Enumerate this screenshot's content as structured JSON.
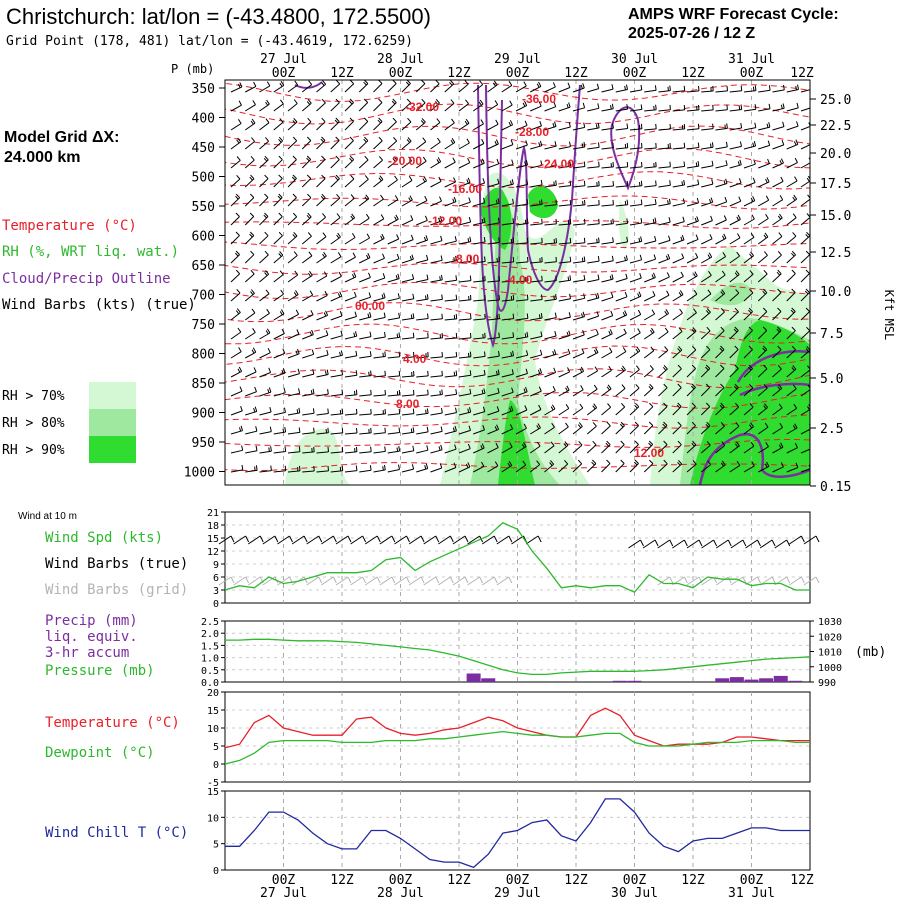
{
  "header": {
    "title": "Christchurch:  lat/lon = (-43.4800, 172.5500)",
    "subtitle": "Grid Point (178, 481) lat/lon = (-43.4619, 172.6259)",
    "cycle_label": "AMPS WRF Forecast Cycle:",
    "cycle_value": "2025-07-26 / 12  Z"
  },
  "left_info": {
    "grid_label": "Model Grid ΔX:",
    "grid_value": " 24.000 km",
    "legend": [
      {
        "text": "Temperature (°C)",
        "color": "#e8202a"
      },
      {
        "text": "RH (%, WRT liq. wat.)",
        "color": "#2eb82e"
      },
      {
        "text": "Cloud/Precip Outline",
        "color": "#7b2ea0"
      },
      {
        "text": "Wind Barbs (kts) (true)",
        "color": "#000000"
      }
    ],
    "rh_legend": [
      {
        "label": "RH > 70%",
        "color": "#d4f7d4"
      },
      {
        "label": "RH > 80%",
        "color": "#9fe89f"
      },
      {
        "label": "RH > 90%",
        "color": "#2fdc2f"
      }
    ]
  },
  "time_axis": {
    "day_labels": [
      "27 Jul",
      "28 Jul",
      "29 Jul",
      "30 Jul",
      "31 Jul"
    ],
    "hour_labels": [
      "00Z",
      "12Z",
      "00Z",
      "12Z",
      "00Z",
      "12Z",
      "00Z",
      "12Z",
      "00Z",
      "12Z"
    ]
  },
  "upper_panel": {
    "p_unit_label": "P (mb)",
    "pressure_ticks": [
      "350",
      "400",
      "450",
      "500",
      "550",
      "600",
      "650",
      "700",
      "750",
      "800",
      "850",
      "900",
      "950",
      "1000"
    ],
    "height_ticks": [
      "25.0",
      "22.5",
      "20.0",
      "17.5",
      "15.0",
      "12.5",
      "10.0",
      "7.5",
      "5.0",
      "2.5",
      "0.15"
    ],
    "height_axis_label": "Kft MSL",
    "temp_labels": [
      "-32.00",
      "-36.00",
      "-28.00",
      "-24.00",
      "-20.00",
      "-16.00",
      "-12.00",
      "-8.00",
      "-4.00",
      "00.00",
      "4.00",
      "8.00",
      "12.00"
    ]
  },
  "wind_panel": {
    "corner_label": "Wind at 10 m",
    "legend": [
      {
        "text": "Wind Spd (kts)",
        "color": "#2eb82e"
      },
      {
        "text": "Wind Barbs (true)",
        "color": "#000000"
      },
      {
        "text": "Wind Barbs (grid)",
        "color": "#b4b4b4"
      }
    ],
    "y_ticks": [
      "21",
      "18",
      "15",
      "12",
      "9",
      "6",
      "3",
      "0"
    ]
  },
  "precip_panel": {
    "legend": [
      {
        "text": "Precip (mm)",
        "color": "#7b2ea0"
      },
      {
        "text": "liq. equiv.",
        "color": "#7b2ea0"
      },
      {
        "text": "3-hr accum",
        "color": "#7b2ea0"
      },
      {
        "text": "Pressure (mb)",
        "color": "#2eb82e"
      }
    ],
    "left_ticks": [
      "2.5",
      "2.0",
      "1.5",
      "1.0",
      "0.5",
      "0.0"
    ],
    "right_ticks": [
      "1030",
      "1020",
      "1010",
      "1000",
      "990"
    ],
    "right_unit": "(mb)"
  },
  "temp_panel": {
    "legend": [
      {
        "text": "Temperature (°C)",
        "color": "#e8202a"
      },
      {
        "text": "Dewpoint (°C)",
        "color": "#2eb82e"
      }
    ],
    "y_ticks": [
      "20",
      "15",
      "10",
      "5",
      "0",
      "-5"
    ]
  },
  "chill_panel": {
    "legend": [
      {
        "text": "Wind Chill T (°C)",
        "color": "#1f2a9e"
      }
    ],
    "y_ticks": [
      "15",
      "10",
      "5",
      "0"
    ]
  },
  "chart_data": [
    {
      "type": "line",
      "x_unit": "forecast hour from 2025-07-26 12Z",
      "x": [
        0,
        3,
        6,
        9,
        12,
        15,
        18,
        21,
        24,
        27,
        30,
        33,
        36,
        39,
        42,
        45,
        48,
        51,
        54,
        57,
        60,
        63,
        66,
        69,
        72,
        75,
        78,
        81,
        84,
        87,
        90,
        93,
        96,
        99,
        102,
        105,
        108,
        111,
        114,
        117,
        120
      ],
      "series": [
        {
          "name": "Wind Spd (kts)",
          "color": "#2eb82e",
          "ylim": [
            0,
            21
          ],
          "values": [
            3,
            4,
            3.5,
            6,
            4.5,
            5,
            6,
            7,
            7,
            7,
            7.5,
            10,
            10.5,
            7.5,
            9.5,
            11,
            12.5,
            14,
            15.5,
            18.5,
            17,
            12,
            8,
            3.5,
            4,
            3.5,
            4,
            4,
            2.5,
            6.5,
            4.5,
            4.5,
            3.5,
            6,
            5.5,
            5.5,
            4,
            4.5,
            4.5,
            3,
            3
          ]
        }
      ]
    },
    {
      "type": "line",
      "x": [
        0,
        3,
        6,
        9,
        12,
        15,
        18,
        21,
        24,
        27,
        30,
        33,
        36,
        39,
        42,
        45,
        48,
        51,
        54,
        57,
        60,
        63,
        66,
        69,
        72,
        75,
        78,
        81,
        84,
        87,
        90,
        93,
        96,
        99,
        102,
        105,
        108,
        111,
        114,
        117,
        120
      ],
      "series": [
        {
          "name": "Pressure (mb)",
          "color": "#2eb82e",
          "ylim": [
            990,
            1030
          ],
          "values": [
            1017.5,
            1017.5,
            1018,
            1018,
            1017.5,
            1017,
            1017,
            1017,
            1016.5,
            1016,
            1015,
            1014,
            1013,
            1012,
            1011,
            1009,
            1007,
            1004,
            1001,
            998,
            996,
            995,
            995,
            996,
            996.5,
            997,
            997,
            997,
            997,
            997.5,
            998,
            999,
            1000,
            1001,
            1002,
            1003,
            1004,
            1005,
            1005.5,
            1006,
            1006.5
          ]
        },
        {
          "name": "Precip (mm)",
          "color": "#7b2ea0",
          "ylim": [
            0,
            2.5
          ],
          "style": "bars",
          "values": [
            0,
            0,
            0,
            0,
            0,
            0,
            0,
            0,
            0,
            0,
            0,
            0,
            0,
            0,
            0,
            0,
            0,
            0.35,
            0.15,
            0,
            0,
            0,
            0,
            0,
            0,
            0,
            0,
            0.05,
            0.05,
            0,
            0,
            0,
            0,
            0,
            0.15,
            0.2,
            0.1,
            0.15,
            0.25,
            0.05,
            0
          ]
        }
      ]
    },
    {
      "type": "line",
      "x": [
        0,
        3,
        6,
        9,
        12,
        15,
        18,
        21,
        24,
        27,
        30,
        33,
        36,
        39,
        42,
        45,
        48,
        51,
        54,
        57,
        60,
        63,
        66,
        69,
        72,
        75,
        78,
        81,
        84,
        87,
        90,
        93,
        96,
        99,
        102,
        105,
        108,
        111,
        114,
        117,
        120
      ],
      "ylim": [
        -5,
        20
      ],
      "series": [
        {
          "name": "Temperature (°C)",
          "color": "#e8202a",
          "values": [
            4.5,
            5.5,
            11.5,
            13.5,
            10,
            9,
            8,
            8,
            8,
            12.5,
            13,
            10,
            8.5,
            8,
            8.5,
            9.5,
            10,
            11.5,
            13,
            12,
            10,
            9,
            8,
            7.5,
            7.5,
            13.5,
            15.5,
            13.5,
            8,
            6.5,
            5,
            5.5,
            5.5,
            5.5,
            6,
            7.5,
            7.5,
            7,
            6.5,
            6.5,
            6.5
          ]
        },
        {
          "name": "Dewpoint (°C)",
          "color": "#2eb82e",
          "values": [
            0,
            1,
            3,
            6,
            6.5,
            6.5,
            6.5,
            6.5,
            6,
            6,
            6,
            6.5,
            6.5,
            6.5,
            7,
            7,
            7.5,
            8,
            8.5,
            9,
            8.5,
            8,
            8,
            7.5,
            7.5,
            8,
            8.5,
            8.5,
            6,
            5,
            5,
            5,
            5.5,
            6,
            6,
            6,
            6.5,
            6.5,
            6.5,
            6,
            6
          ]
        }
      ]
    },
    {
      "type": "line",
      "x": [
        0,
        3,
        6,
        9,
        12,
        15,
        18,
        21,
        24,
        27,
        30,
        33,
        36,
        39,
        42,
        45,
        48,
        51,
        54,
        57,
        60,
        63,
        66,
        69,
        72,
        75,
        78,
        81,
        84,
        87,
        90,
        93,
        96,
        99,
        102,
        105,
        108,
        111,
        114,
        117,
        120
      ],
      "ylim": [
        0,
        15
      ],
      "series": [
        {
          "name": "Wind Chill T (°C)",
          "color": "#1f2a9e",
          "values": [
            4.5,
            4.5,
            7.5,
            11,
            11,
            9.5,
            7,
            5,
            4,
            4,
            7.5,
            7.5,
            6,
            4,
            2,
            1.5,
            1.5,
            0.5,
            3,
            7,
            7.5,
            9,
            9.5,
            6.5,
            5.5,
            9,
            13.5,
            13.5,
            11,
            7,
            4.5,
            3.5,
            5.5,
            6,
            6,
            7,
            8,
            8,
            7.5,
            7.5,
            7.5
          ]
        }
      ]
    }
  ]
}
